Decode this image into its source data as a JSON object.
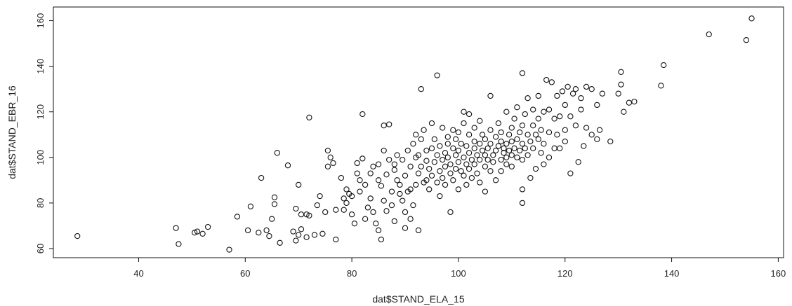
{
  "chart_data": {
    "type": "scatter",
    "xlabel": "dat$STAND_ELA_15",
    "ylabel": "dat$STAND_EBR_16",
    "xlim": [
      24,
      161
    ],
    "ylim": [
      56,
      166
    ],
    "xticks": [
      40,
      60,
      80,
      100,
      120,
      140,
      160
    ],
    "yticks": [
      60,
      80,
      100,
      120,
      140,
      160
    ],
    "grid": false,
    "marker": "open-circle",
    "marker_color": "#111111",
    "points": [
      [
        28.5,
        65.5
      ],
      [
        47,
        69
      ],
      [
        47.5,
        62
      ],
      [
        50.5,
        67
      ],
      [
        51,
        67.5
      ],
      [
        52,
        66.5
      ],
      [
        53,
        69.5
      ],
      [
        57,
        59.5
      ],
      [
        58.5,
        74
      ],
      [
        60.5,
        68
      ],
      [
        61,
        78.5
      ],
      [
        62.5,
        67
      ],
      [
        63,
        91
      ],
      [
        64,
        68
      ],
      [
        64.5,
        65.5
      ],
      [
        65,
        73
      ],
      [
        65.5,
        79.5
      ],
      [
        65.5,
        82.5
      ],
      [
        66,
        102
      ],
      [
        66.5,
        62.5
      ],
      [
        68,
        96.5
      ],
      [
        69,
        67.5
      ],
      [
        69.5,
        77.5
      ],
      [
        69.5,
        63.5
      ],
      [
        70,
        88
      ],
      [
        70,
        66
      ],
      [
        70.5,
        68.5
      ],
      [
        70.5,
        75
      ],
      [
        71.5,
        65
      ],
      [
        71.5,
        75
      ],
      [
        72,
        74.5
      ],
      [
        72,
        117.5
      ],
      [
        73,
        66
      ],
      [
        73.5,
        79
      ],
      [
        74,
        83
      ],
      [
        74.5,
        66.5
      ],
      [
        75,
        76
      ],
      [
        75.5,
        103
      ],
      [
        75.5,
        96
      ],
      [
        76,
        100
      ],
      [
        76.5,
        97.5
      ],
      [
        77,
        77
      ],
      [
        77,
        64
      ],
      [
        78,
        91
      ],
      [
        78.5,
        82
      ],
      [
        78.5,
        77
      ],
      [
        79,
        86
      ],
      [
        79.5,
        84
      ],
      [
        79,
        80
      ],
      [
        80,
        83
      ],
      [
        80,
        75
      ],
      [
        80.5,
        71
      ],
      [
        81,
        93
      ],
      [
        81,
        97.5
      ],
      [
        81.5,
        85
      ],
      [
        81.5,
        90
      ],
      [
        82,
        99.5
      ],
      [
        82,
        119
      ],
      [
        82.5,
        88
      ],
      [
        82.5,
        73
      ],
      [
        83,
        78
      ],
      [
        83.5,
        93
      ],
      [
        83.5,
        82
      ],
      [
        84,
        96
      ],
      [
        84,
        76
      ],
      [
        84.5,
        71
      ],
      [
        85,
        90
      ],
      [
        85,
        97
      ],
      [
        85,
        68
      ],
      [
        85.5,
        87.5
      ],
      [
        85.5,
        64
      ],
      [
        86,
        103
      ],
      [
        86,
        81
      ],
      [
        86,
        114
      ],
      [
        86.5,
        92.5
      ],
      [
        86.5,
        76.5
      ],
      [
        87,
        99
      ],
      [
        87,
        114.5
      ],
      [
        87.5,
        85
      ],
      [
        87.5,
        79
      ],
      [
        88,
        94.5
      ],
      [
        88,
        97
      ],
      [
        88,
        72
      ],
      [
        88.5,
        90
      ],
      [
        88.5,
        101
      ],
      [
        89,
        88
      ],
      [
        89,
        84
      ],
      [
        89.5,
        99
      ],
      [
        89.5,
        81
      ],
      [
        90,
        92
      ],
      [
        90,
        69
      ],
      [
        90,
        76
      ],
      [
        90.5,
        85
      ],
      [
        90.5,
        103
      ],
      [
        91,
        86
      ],
      [
        91,
        96
      ],
      [
        91,
        73
      ],
      [
        91.5,
        106
      ],
      [
        91.5,
        79
      ],
      [
        92,
        100
      ],
      [
        92,
        110
      ],
      [
        92,
        88
      ],
      [
        92.5,
        93
      ],
      [
        92.5,
        101
      ],
      [
        92.5,
        68
      ],
      [
        93,
        108
      ],
      [
        93,
        96
      ],
      [
        93,
        130
      ],
      [
        93.5,
        89
      ],
      [
        93.5,
        112
      ],
      [
        94,
        98.5
      ],
      [
        94,
        90
      ],
      [
        94,
        103
      ],
      [
        94.5,
        95
      ],
      [
        94.5,
        86
      ],
      [
        95,
        104
      ],
      [
        95,
        115
      ],
      [
        95,
        92
      ],
      [
        95.5,
        98
      ],
      [
        95.5,
        108
      ],
      [
        96,
        101
      ],
      [
        96,
        89
      ],
      [
        96,
        136
      ],
      [
        96.5,
        94
      ],
      [
        96.5,
        105
      ],
      [
        96.5,
        83
      ],
      [
        97,
        99
      ],
      [
        97,
        113
      ],
      [
        97,
        91
      ],
      [
        97.5,
        102
      ],
      [
        97.5,
        96
      ],
      [
        97.5,
        88
      ],
      [
        98,
        106
      ],
      [
        98,
        100
      ],
      [
        98,
        109
      ],
      [
        98.5,
        93
      ],
      [
        98.5,
        97
      ],
      [
        98.5,
        76
      ],
      [
        99,
        104
      ],
      [
        99,
        90
      ],
      [
        99,
        112
      ],
      [
        99.5,
        101
      ],
      [
        99.5,
        95
      ],
      [
        99.5,
        108
      ],
      [
        100,
        98
      ],
      [
        100,
        103
      ],
      [
        100,
        86
      ],
      [
        100,
        111
      ],
      [
        100.5,
        94
      ],
      [
        100.5,
        106
      ],
      [
        101,
        100
      ],
      [
        101,
        92
      ],
      [
        101,
        115
      ],
      [
        101,
        120
      ],
      [
        101.5,
        97
      ],
      [
        101.5,
        105
      ],
      [
        101.5,
        88
      ],
      [
        102,
        102
      ],
      [
        102,
        95
      ],
      [
        102,
        110
      ],
      [
        102,
        119
      ],
      [
        102.5,
        99
      ],
      [
        102.5,
        91
      ],
      [
        103,
        104
      ],
      [
        103,
        107
      ],
      [
        103,
        97
      ],
      [
        103,
        113
      ],
      [
        103.5,
        101
      ],
      [
        103.5,
        93
      ],
      [
        104,
        106
      ],
      [
        104,
        99
      ],
      [
        104,
        89
      ],
      [
        104,
        116
      ],
      [
        104.5,
        103
      ],
      [
        104.5,
        110
      ],
      [
        105,
        96
      ],
      [
        105,
        101
      ],
      [
        105,
        108
      ],
      [
        105,
        85
      ],
      [
        105.5,
        99
      ],
      [
        105.5,
        104
      ],
      [
        106,
        106
      ],
      [
        106,
        112
      ],
      [
        106,
        94
      ],
      [
        106,
        127
      ],
      [
        106.5,
        101
      ],
      [
        106.5,
        98
      ],
      [
        107,
        103
      ],
      [
        107,
        109
      ],
      [
        107,
        90
      ],
      [
        107.5,
        105
      ],
      [
        107.5,
        115
      ],
      [
        108,
        99
      ],
      [
        108,
        107
      ],
      [
        108,
        94
      ],
      [
        108,
        111
      ],
      [
        108.5,
        102
      ],
      [
        108.5,
        104
      ],
      [
        109,
        106
      ],
      [
        109,
        100
      ],
      [
        109,
        97
      ],
      [
        109,
        120
      ],
      [
        109.5,
        103
      ],
      [
        109.5,
        110
      ],
      [
        110,
        107
      ],
      [
        110,
        96
      ],
      [
        110,
        101
      ],
      [
        110,
        113
      ],
      [
        110.5,
        104
      ],
      [
        110.5,
        117
      ],
      [
        111,
        100
      ],
      [
        111,
        108
      ],
      [
        111,
        122
      ],
      [
        111.5,
        111
      ],
      [
        111.5,
        103
      ],
      [
        112,
        106
      ],
      [
        112,
        114
      ],
      [
        112,
        99
      ],
      [
        112,
        137
      ],
      [
        112,
        86
      ],
      [
        112,
        80
      ],
      [
        112.5,
        104
      ],
      [
        112.5,
        119
      ],
      [
        113,
        110
      ],
      [
        113,
        101
      ],
      [
        113,
        126
      ],
      [
        113.5,
        107
      ],
      [
        113.5,
        91
      ],
      [
        114,
        114
      ],
      [
        114,
        104
      ],
      [
        114,
        121
      ],
      [
        114.5,
        110
      ],
      [
        114.5,
        95
      ],
      [
        115,
        108
      ],
      [
        115,
        117
      ],
      [
        115,
        127
      ],
      [
        115.5,
        102
      ],
      [
        115.5,
        112
      ],
      [
        116,
        106
      ],
      [
        116,
        120
      ],
      [
        116,
        97
      ],
      [
        116.5,
        134
      ],
      [
        117,
        111
      ],
      [
        117,
        100
      ],
      [
        117,
        121
      ],
      [
        117.5,
        133
      ],
      [
        118,
        104
      ],
      [
        118,
        117
      ],
      [
        118.5,
        110
      ],
      [
        118.5,
        127
      ],
      [
        119,
        104
      ],
      [
        119,
        118
      ],
      [
        119.5,
        129
      ],
      [
        120,
        123
      ],
      [
        120,
        112
      ],
      [
        120,
        107
      ],
      [
        120.5,
        131
      ],
      [
        121,
        118
      ],
      [
        121,
        93
      ],
      [
        121.5,
        128
      ],
      [
        122,
        130
      ],
      [
        122,
        114
      ],
      [
        122.5,
        98
      ],
      [
        123,
        126
      ],
      [
        123,
        121
      ],
      [
        123.5,
        105
      ],
      [
        124,
        131
      ],
      [
        124,
        113
      ],
      [
        125,
        130
      ],
      [
        125,
        110
      ],
      [
        126,
        123
      ],
      [
        126,
        108
      ],
      [
        126.5,
        112
      ],
      [
        127,
        128
      ],
      [
        128.5,
        107
      ],
      [
        130,
        128
      ],
      [
        130.5,
        137.5
      ],
      [
        130.5,
        132
      ],
      [
        131,
        120
      ],
      [
        132,
        124
      ],
      [
        133,
        124.5
      ],
      [
        138,
        131.5
      ],
      [
        138.5,
        140.5
      ],
      [
        147,
        154
      ],
      [
        154,
        151.5
      ],
      [
        155,
        161
      ]
    ]
  }
}
